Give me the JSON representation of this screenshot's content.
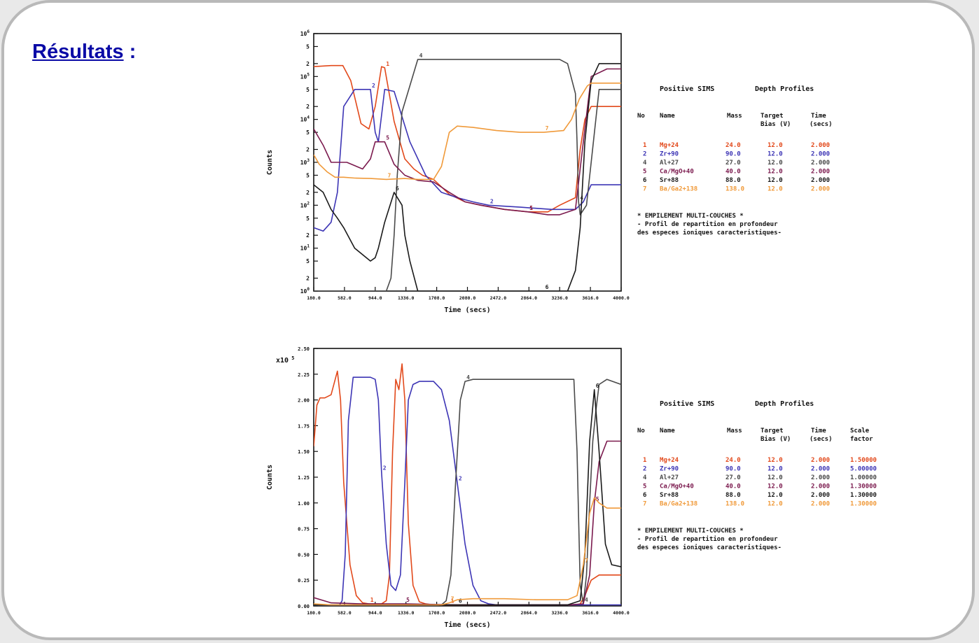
{
  "slide": {
    "title_link": "Résultats",
    "title_suffix": " :"
  },
  "chart_data": [
    {
      "type": "line",
      "y_scale": "log",
      "xlabel": "Time  (secs)",
      "ylabel": "Counts",
      "xlim": [
        180,
        4080
      ],
      "ylim": [
        1,
        1000000
      ],
      "x_ticks": [
        "180.0",
        "582.0",
        "944.0",
        "1336.0",
        "1708.0",
        "2080.0",
        "2472.0",
        "2864.0",
        "3236.0",
        "3616.0",
        "4000.0"
      ],
      "y_ticks": [
        {
          "label": "10",
          "exp": "0"
        },
        {
          "label": "2"
        },
        {
          "label": "5"
        },
        {
          "label": "10",
          "exp": "1"
        },
        {
          "label": "2"
        },
        {
          "label": "5"
        },
        {
          "label": "10",
          "exp": "2"
        },
        {
          "label": "2"
        },
        {
          "label": "5"
        },
        {
          "label": "10",
          "exp": "3"
        },
        {
          "label": "2"
        },
        {
          "label": "5"
        },
        {
          "label": "10",
          "exp": "4"
        },
        {
          "label": "2"
        },
        {
          "label": "5"
        },
        {
          "label": "10",
          "exp": "5"
        },
        {
          "label": "2"
        },
        {
          "label": "5"
        },
        {
          "label": "10",
          "exp": "6"
        }
      ],
      "series": [
        {
          "name": "Mg+24",
          "label": "1",
          "color": "#e2491b",
          "x": [
            180,
            400,
            550,
            650,
            780,
            880,
            960,
            1040,
            1080,
            1200,
            1336,
            1450,
            1560,
            1700,
            1900,
            2100,
            2300,
            2600,
            2900,
            3150,
            3300,
            3500,
            3560,
            3620,
            3700,
            3850,
            4080
          ],
          "y": [
            170000,
            180000,
            180000,
            80000,
            8000,
            6000,
            20000,
            170000,
            160000,
            9000,
            1200,
            700,
            500,
            400,
            180,
            120,
            100,
            80,
            70,
            70,
            100,
            150,
            2000,
            10000,
            20000,
            20000,
            20000
          ]
        },
        {
          "name": "Zr+90",
          "label": "2",
          "color": "#3d35b5",
          "x": [
            180,
            300,
            400,
            480,
            560,
            700,
            900,
            960,
            1000,
            1080,
            1200,
            1400,
            1600,
            1800,
            2000,
            2200,
            2400,
            2800,
            3200,
            3500,
            3600,
            3700,
            4080
          ],
          "y": [
            30,
            25,
            40,
            200,
            20000,
            50000,
            50000,
            5000,
            3000,
            50000,
            45000,
            3000,
            500,
            200,
            150,
            120,
            100,
            90,
            80,
            80,
            120,
            300,
            300
          ]
        },
        {
          "name": "Al+27",
          "label": "4",
          "color": "#4a4a4a",
          "x": [
            180,
            1100,
            1160,
            1200,
            1240,
            1300,
            1500,
            2000,
            2500,
            3000,
            3300,
            3400,
            3500,
            3520,
            3540,
            3560,
            3640,
            3700,
            3800,
            3900,
            4080
          ],
          "y": [
            1,
            1,
            2,
            20,
            500,
            15000,
            250000,
            250000,
            250000,
            250000,
            250000,
            200000,
            40000,
            3000,
            120,
            60,
            100,
            1000,
            50000,
            50000,
            50000
          ]
        },
        {
          "name": "Ca/MgO+40",
          "label": "5",
          "color": "#7b1a4e",
          "x": [
            180,
            300,
            400,
            600,
            800,
            900,
            960,
            1080,
            1200,
            1336,
            1500,
            1700,
            1900,
            2100,
            2300,
            2600,
            2900,
            3150,
            3300,
            3500,
            3600,
            3700,
            3900,
            4080
          ],
          "y": [
            6000,
            2500,
            1000,
            1000,
            700,
            1200,
            3000,
            3000,
            900,
            500,
            380,
            350,
            200,
            120,
            100,
            80,
            70,
            60,
            60,
            80,
            3000,
            100000,
            150000,
            150000
          ]
        },
        {
          "name": "Sr+88",
          "label": "6",
          "color": "#1a1a1a",
          "x": [
            180,
            300,
            400,
            480,
            560,
            700,
            900,
            960,
            1000,
            1080,
            1200,
            1300,
            1336,
            1400,
            1500,
            1600,
            1700,
            1900,
            2100,
            2300,
            2500,
            2700,
            2900,
            3100,
            3200,
            3300,
            3400,
            3500,
            3560,
            3620,
            3700,
            3800,
            3900,
            4080
          ],
          "y": [
            300,
            200,
            80,
            50,
            30,
            10,
            5,
            6,
            10,
            40,
            200,
            100,
            20,
            5,
            1,
            1,
            1,
            1,
            1,
            1,
            1,
            1,
            1,
            1,
            1,
            1,
            1,
            3,
            30,
            3000,
            80000,
            200000,
            200000,
            200000
          ]
        },
        {
          "name": "Ba/Ga2+138",
          "label": "7",
          "color": "#f09a3a",
          "x": [
            180,
            250,
            350,
            450,
            560,
            700,
            900,
            1100,
            1336,
            1500,
            1700,
            1800,
            1900,
            2000,
            2200,
            2500,
            2800,
            3100,
            3350,
            3450,
            3550,
            3650,
            3700,
            3800,
            4080
          ],
          "y": [
            1500,
            900,
            600,
            450,
            450,
            430,
            420,
            400,
            420,
            400,
            400,
            800,
            5000,
            7000,
            6500,
            5500,
            5000,
            5000,
            5500,
            10000,
            30000,
            60000,
            70000,
            70000,
            70000
          ]
        }
      ],
      "legend": {
        "header_left": "Positive SIMS",
        "header_right": "Depth Profiles",
        "columns": [
          "No",
          "Name",
          "Mass",
          "Target Bias (V)",
          "Time (secs)"
        ],
        "col_target_1": "Target",
        "col_target_2": "Bias (V)",
        "col_time_1": "Time",
        "col_time_2": "(secs)",
        "rows": [
          {
            "no": "1",
            "name": "Mg+24",
            "mass": "24.0",
            "bias": "12.0",
            "time": "2.000",
            "color": "#e2491b"
          },
          {
            "no": "2",
            "name": "Zr+90",
            "mass": "90.0",
            "bias": "12.0",
            "time": "2.000",
            "color": "#3d35b5"
          },
          {
            "no": "4",
            "name": "Al+27",
            "mass": "27.0",
            "bias": "12.0",
            "time": "2.000",
            "color": "#4a4a4a"
          },
          {
            "no": "5",
            "name": "Ca/MgO+40",
            "mass": "40.0",
            "bias": "12.0",
            "time": "2.000",
            "color": "#7b1a4e"
          },
          {
            "no": "6",
            "name": "Sr+88",
            "mass": "88.0",
            "bias": "12.0",
            "time": "2.000",
            "color": "#1a1a1a"
          },
          {
            "no": "7",
            "name": "Ba/Ga2+138",
            "mass": "138.0",
            "bias": "12.0",
            "time": "2.000",
            "color": "#f09a3a"
          }
        ],
        "note_1": "* EMPILEMENT MULTI-COUCHES          *",
        "note_2": "- Profil de repartition en profondeur",
        "note_3": "  des especes ioniques caracteristiques-"
      }
    },
    {
      "type": "line",
      "y_scale": "linear",
      "xlabel": "Time  (secs)",
      "ylabel": "Counts",
      "y_multiplier": "x10",
      "y_multiplier_exp": "5",
      "xlim": [
        180,
        4080
      ],
      "ylim": [
        0,
        2.5
      ],
      "x_ticks": [
        "180.0",
        "582.0",
        "944.0",
        "1336.0",
        "1708.0",
        "2080.0",
        "2472.0",
        "2864.0",
        "3236.0",
        "3616.0",
        "4000.0"
      ],
      "y_ticks": [
        "0.00",
        "0.25",
        "0.50",
        "0.75",
        "1.00",
        "1.25",
        "1.50",
        "1.75",
        "2.00",
        "2.25",
        "2.50"
      ],
      "series": [
        {
          "name": "Mg+24",
          "label": "1",
          "color": "#e2491b",
          "x": [
            180,
            220,
            260,
            320,
            400,
            480,
            520,
            560,
            640,
            720,
            800,
            880,
            960,
            1040,
            1100,
            1140,
            1180,
            1220,
            1260,
            1300,
            1336,
            1380,
            1440,
            1520,
            1600,
            1700,
            1900,
            2200,
            2600,
            3000,
            3400,
            3500,
            3560,
            3620,
            3700,
            3800,
            3900,
            4080
          ],
          "y": [
            1.55,
            1.95,
            2.02,
            2.02,
            2.05,
            2.28,
            2.0,
            1.2,
            0.4,
            0.1,
            0.03,
            0.02,
            0.02,
            0.02,
            0.05,
            0.3,
            1.5,
            2.2,
            2.1,
            2.35,
            2.0,
            0.8,
            0.2,
            0.04,
            0.02,
            0.01,
            0.01,
            0.01,
            0.01,
            0.01,
            0.01,
            0.01,
            0.02,
            0.1,
            0.25,
            0.3,
            0.3,
            0.3
          ]
        },
        {
          "name": "Zr+90",
          "label": "2",
          "color": "#3d35b5",
          "x": [
            180,
            500,
            540,
            580,
            620,
            680,
            800,
            900,
            960,
            1000,
            1040,
            1100,
            1160,
            1220,
            1280,
            1336,
            1380,
            1440,
            1520,
            1600,
            1700,
            1800,
            1900,
            2000,
            2100,
            2200,
            2300,
            2400,
            2500,
            2800,
            3200,
            3560,
            3600,
            4080
          ],
          "y": [
            0,
            0,
            0.05,
            0.5,
            1.8,
            2.22,
            2.22,
            2.22,
            2.2,
            2.0,
            1.3,
            0.6,
            0.2,
            0.15,
            0.3,
            1.2,
            2.0,
            2.15,
            2.18,
            2.18,
            2.18,
            2.1,
            1.8,
            1.2,
            0.6,
            0.2,
            0.05,
            0.02,
            0.01,
            0.01,
            0.01,
            0.01,
            0.01,
            0.01
          ]
        },
        {
          "name": "Al+27",
          "label": "4",
          "color": "#4a4a4a",
          "x": [
            180,
            1700,
            1800,
            1860,
            1920,
            1980,
            2040,
            2100,
            2200,
            2400,
            2800,
            3200,
            3400,
            3480,
            3520,
            3560,
            3600,
            3640,
            3680,
            3720,
            3760,
            3800,
            3900,
            4080
          ],
          "y": [
            0,
            0,
            0.01,
            0.05,
            0.3,
            1.2,
            2.0,
            2.18,
            2.2,
            2.2,
            2.2,
            2.2,
            2.2,
            2.2,
            1.5,
            0.2,
            0.02,
            0.3,
            1.0,
            1.6,
            1.9,
            2.15,
            2.2,
            2.15
          ]
        },
        {
          "name": "Ca/MgO+40",
          "label": "5",
          "color": "#7b1a4e",
          "x": [
            180,
            400,
            800,
            1336,
            2000,
            2800,
            3400,
            3600,
            3680,
            3740,
            3800,
            3900,
            4080
          ],
          "y": [
            0.08,
            0.03,
            0.02,
            0.02,
            0.01,
            0.01,
            0.01,
            0.02,
            0.3,
            1.0,
            1.4,
            1.6,
            1.6
          ]
        },
        {
          "name": "Sr+88",
          "label": "6",
          "color": "#1a1a1a",
          "x": [
            180,
            400,
            800,
            1336,
            2000,
            2800,
            3400,
            3560,
            3620,
            3680,
            3740,
            3800,
            3880,
            3960,
            4080
          ],
          "y": [
            0.01,
            0.01,
            0.01,
            0.01,
            0.01,
            0.01,
            0.01,
            0.05,
            0.5,
            1.6,
            2.1,
            1.5,
            0.6,
            0.4,
            0.38
          ]
        },
        {
          "name": "Ba/Ga2+138",
          "label": "7",
          "color": "#f09a3a",
          "x": [
            180,
            400,
            800,
            1336,
            1800,
            1900,
            2000,
            2200,
            2600,
            3000,
            3400,
            3520,
            3600,
            3680,
            3740,
            3800,
            3900,
            4080
          ],
          "y": [
            0.02,
            0.01,
            0.01,
            0.01,
            0.01,
            0.03,
            0.06,
            0.07,
            0.07,
            0.06,
            0.06,
            0.1,
            0.4,
            0.9,
            1.05,
            1.0,
            0.95,
            0.95
          ]
        }
      ],
      "legend": {
        "header_left": "Positive SIMS",
        "header_right": "Depth Profiles",
        "columns": [
          "No",
          "Name",
          "Mass",
          "Target Bias (V)",
          "Time (secs)",
          "Scale factor"
        ],
        "col_target_1": "Target",
        "col_target_2": "Bias (V)",
        "col_time_1": "Time",
        "col_time_2": "(secs)",
        "col_scale_1": "Scale",
        "col_scale_2": "factor",
        "rows": [
          {
            "no": "1",
            "name": "Mg+24",
            "mass": "24.0",
            "bias": "12.0",
            "time": "2.000",
            "scale": "1.50000",
            "color": "#e2491b"
          },
          {
            "no": "2",
            "name": "Zr+90",
            "mass": "90.0",
            "bias": "12.0",
            "time": "2.000",
            "scale": "5.00000",
            "color": "#3d35b5"
          },
          {
            "no": "4",
            "name": "Al+27",
            "mass": "27.0",
            "bias": "12.0",
            "time": "2.000",
            "scale": "1.00000",
            "color": "#4a4a4a"
          },
          {
            "no": "5",
            "name": "Ca/MgO+40",
            "mass": "40.0",
            "bias": "12.0",
            "time": "2.000",
            "scale": "1.30000",
            "color": "#7b1a4e"
          },
          {
            "no": "6",
            "name": "Sr+88",
            "mass": "88.0",
            "bias": "12.0",
            "time": "2.000",
            "scale": "1.30000",
            "color": "#1a1a1a"
          },
          {
            "no": "7",
            "name": "Ba/Ga2+138",
            "mass": "138.0",
            "bias": "12.0",
            "time": "2.000",
            "scale": "1.30000",
            "color": "#f09a3a"
          }
        ],
        "note_1": "* EMPILEMENT MULTI-COUCHES          *",
        "note_2": "- Profil de repartition en profondeur",
        "note_3": "  des especes ioniques caracteristiques-"
      }
    }
  ]
}
